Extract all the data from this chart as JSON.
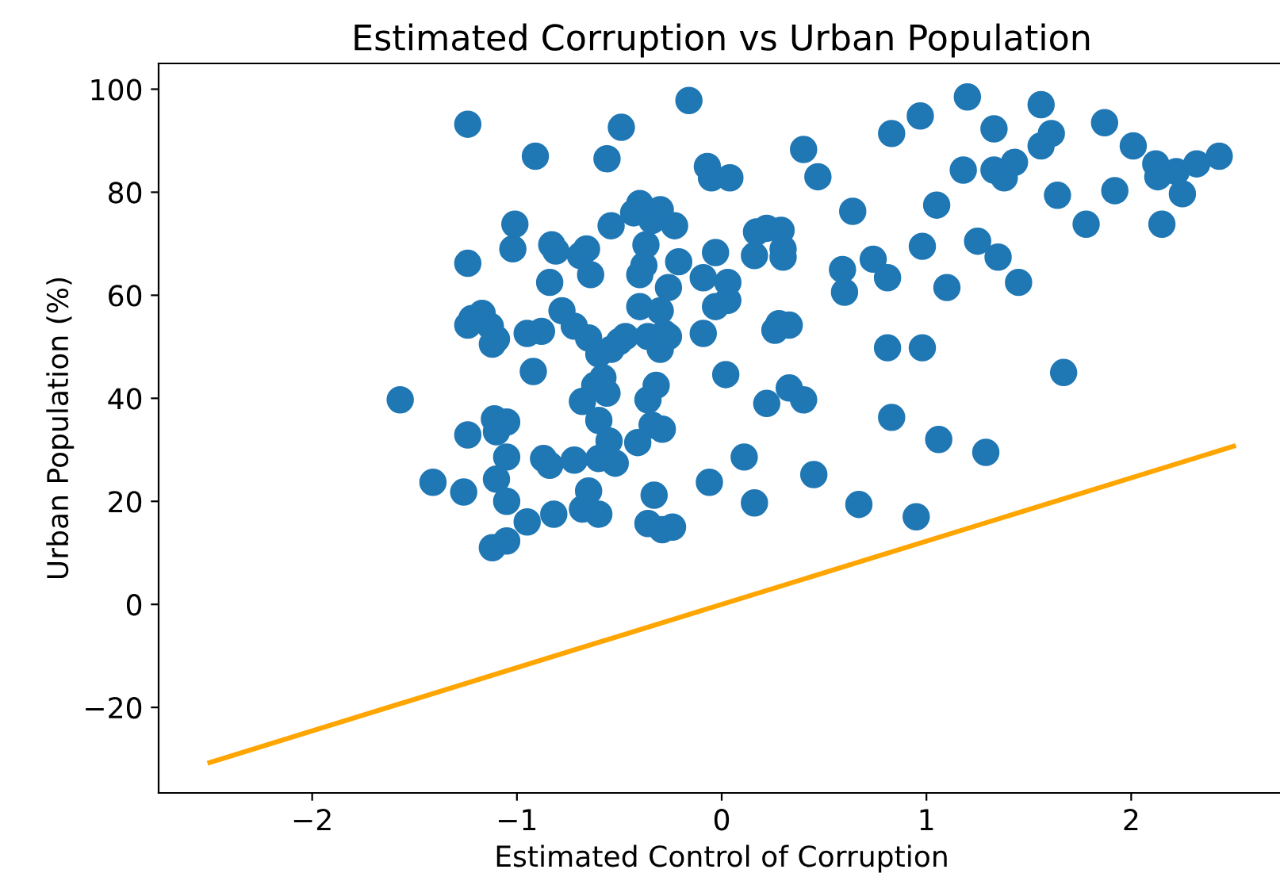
{
  "chart_data": {
    "type": "scatter",
    "title": "Estimated Corruption vs Urban Population",
    "xlabel": "Estimated Control of Corruption",
    "ylabel": "Urban Population (%)",
    "xlim": [
      -2.75,
      2.75
    ],
    "ylim": [
      -36.6,
      105
    ],
    "xticks": [
      {
        "value": -2,
        "label": "−2"
      },
      {
        "value": -1,
        "label": "−1"
      },
      0,
      1,
      2
    ],
    "yticks": [
      {
        "value": -20,
        "label": "−20"
      },
      0,
      20,
      40,
      60,
      80,
      100
    ],
    "grid": false,
    "legend": false,
    "marker": "circle",
    "series": [
      {
        "color": "#1f77b4",
        "x": [
          -1.57,
          -1.24,
          -1.24,
          -1.24,
          -1.22,
          -1.17,
          -1.13,
          -1.1,
          -1.12,
          -1.41,
          -1.26,
          -1.24,
          -1.1,
          -1.11,
          -1.05,
          -1.05,
          -1.1,
          -1.05,
          -1.12,
          -1.05,
          -0.95,
          -1.02,
          -1.01,
          -0.91,
          -0.92,
          -0.88,
          -0.95,
          -0.83,
          -0.81,
          -0.84,
          -0.87,
          -0.84,
          -0.82,
          -0.78,
          -0.72,
          -0.72,
          -0.68,
          -0.69,
          -0.66,
          -0.64,
          -0.65,
          -0.65,
          -0.68,
          -0.62,
          -0.6,
          -0.6,
          -0.6,
          -0.6,
          -0.58,
          -0.56,
          -0.56,
          -0.55,
          -0.54,
          -0.54,
          -0.52,
          -0.5,
          -0.49,
          -0.47,
          -0.41,
          -0.4,
          -0.43,
          -0.4,
          -0.4,
          -0.38,
          -0.37,
          -0.36,
          -0.36,
          -0.36,
          -0.34,
          -0.33,
          -0.32,
          -0.34,
          -0.3,
          -0.3,
          -0.3,
          -0.29,
          -0.29,
          -0.28,
          -0.26,
          -0.26,
          -0.24,
          -0.23,
          -0.21,
          -0.16,
          -0.09,
          -0.09,
          -0.07,
          -0.05,
          -0.06,
          -0.03,
          -0.03,
          0.02,
          0.03,
          0.03,
          0.04,
          0.11,
          0.16,
          0.16,
          0.17,
          0.22,
          0.22,
          0.26,
          0.28,
          0.29,
          0.3,
          0.3,
          0.33,
          0.33,
          0.4,
          0.4,
          0.45,
          0.47,
          0.59,
          0.6,
          0.64,
          0.67,
          0.74,
          0.81,
          0.81,
          0.83,
          0.83,
          0.97,
          0.98,
          0.98,
          0.95,
          1.05,
          1.06,
          1.1,
          1.18,
          1.2,
          1.25,
          1.29,
          1.33,
          1.35,
          1.33,
          1.38,
          1.43,
          1.45,
          1.56,
          1.56,
          1.61,
          1.64,
          1.67,
          1.78,
          1.87,
          1.92,
          2.01,
          2.12,
          2.13,
          2.15,
          2.22,
          2.25,
          2.32,
          2.43
        ],
        "values": [
          39.7,
          93.2,
          66.2,
          54.2,
          55.5,
          56.5,
          54,
          51.5,
          50.5,
          23.7,
          21.8,
          32.9,
          33.5,
          36,
          35.4,
          28.6,
          24.3,
          20,
          11,
          12.3,
          16,
          69,
          73.8,
          87,
          45.2,
          53,
          52.6,
          69.8,
          68.6,
          62.5,
          28.3,
          27,
          17.5,
          57,
          54,
          28,
          39.4,
          67.7,
          69,
          64,
          51.7,
          22,
          18.5,
          42.5,
          48.6,
          35.7,
          28.3,
          17.5,
          44,
          86.5,
          41,
          31.7,
          73.5,
          49.5,
          27.4,
          51,
          92.6,
          52,
          31.4,
          77.8,
          76,
          57.8,
          64,
          65.8,
          69.8,
          39.7,
          52,
          15.7,
          74.5,
          21.2,
          42.5,
          34.8,
          57,
          76.6,
          49.5,
          34,
          14.5,
          52.6,
          52,
          61.5,
          15,
          73.5,
          66.5,
          97.8,
          63.4,
          52.6,
          85,
          82.8,
          23.7,
          57.8,
          68.3,
          44.6,
          62.5,
          59,
          82.8,
          28.6,
          19.7,
          67.7,
          72.3,
          73,
          39,
          53.2,
          54.5,
          72.6,
          69,
          67.4,
          42,
          54.2,
          88.3,
          39.7,
          25.2,
          83,
          65,
          60.6,
          76.3,
          19.4,
          67,
          63.4,
          49.8,
          36.3,
          91.4,
          94.8,
          69.5,
          49.8,
          17,
          77.5,
          32,
          61.5,
          84.3,
          98.5,
          70.5,
          29.5,
          92.3,
          67.4,
          84.3,
          82.8,
          85.8,
          62.5,
          97,
          89,
          91.4,
          79.4,
          45,
          73.8,
          93.5,
          80.3,
          89,
          85.5,
          83,
          73.8,
          84,
          79.7,
          85.5,
          87
        ]
      },
      {
        "type": "line",
        "color": "#ffa500",
        "marker": "none",
        "line_style": "solid",
        "x": [
          -2.5,
          2.5
        ],
        "values": [
          -30.7,
          30.7
        ]
      }
    ]
  }
}
